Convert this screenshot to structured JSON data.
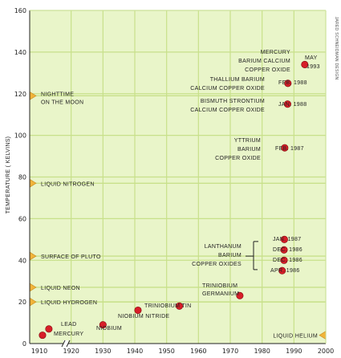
{
  "chart_data": {
    "type": "scatter",
    "title": "",
    "xlabel": "",
    "ylabel": "TEMPERATURE ( KELVINS)",
    "xlim": [
      1905,
      2000
    ],
    "ylim": [
      0,
      160
    ],
    "x_ticks": [
      "1910",
      "1920",
      "1930",
      "1940",
      "1950",
      "1960",
      "1970",
      "1980",
      "1990",
      "2000"
    ],
    "y_ticks": [
      "0",
      "20",
      "40",
      "60",
      "80",
      "100",
      "120",
      "140",
      "160"
    ],
    "grid": true,
    "axis_break": true,
    "credit": "JARED SCHNEIDMAN DESIGN",
    "colors": {
      "background": "#e9f5c9",
      "grid": "#c8e08a",
      "point": "#d81e28",
      "marker": "#f1b43a"
    },
    "reference_levels": [
      {
        "label": "NIGHTTIME ON THE MOON",
        "value": 119
      },
      {
        "label": "LIQUID NITROGEN",
        "value": 77
      },
      {
        "label": "SURFACE OF PLUTO",
        "value": 42
      },
      {
        "label": "LIQUID NEON",
        "value": 27
      },
      {
        "label": "LIQUID HYDROGEN",
        "value": 20
      },
      {
        "label": "LIQUID HELIUM",
        "value": 4
      }
    ],
    "points": [
      {
        "material": "MERCURY",
        "x": 1911,
        "y": 4
      },
      {
        "material": "LEAD",
        "x": 1913,
        "y": 7
      },
      {
        "material": "NIOBIUM",
        "x": 1930,
        "y": 9
      },
      {
        "material": "NIOBIUM NITRIDE",
        "x": 1941,
        "y": 16
      },
      {
        "material": "TRINIOBIUM TIN",
        "x": 1954,
        "y": 18
      },
      {
        "material": "TRINIOBIUM GERMANIUM",
        "x": 1973,
        "y": 23
      },
      {
        "material": "LANTHANUM BARIUM COPPER OXIDES",
        "x": 1986.3,
        "y": 35,
        "date": "APR. 1986"
      },
      {
        "material": "LANTHANUM BARIUM COPPER OXIDES",
        "x": 1986.9,
        "y": 40,
        "date": "DEC. 1986"
      },
      {
        "material": "LANTHANUM BARIUM COPPER OXIDES",
        "x": 1986.9,
        "y": 45,
        "date": "DEC. 1986"
      },
      {
        "material": "LANTHANUM BARIUM COPPER OXIDES",
        "x": 1987.0,
        "y": 50,
        "date": "JAN. 1987"
      },
      {
        "material": "YTTRIUM BARIUM COPPER OXIDE",
        "x": 1987.1,
        "y": 94,
        "date": "FEB. 1987"
      },
      {
        "material": "BISMUTH STRONTIUM CALCIUM COPPER OXIDE",
        "x": 1988.0,
        "y": 115,
        "date": "JAN. 1988"
      },
      {
        "material": "THALLIUM BARIUM CALCIUM COPPER OXIDE",
        "x": 1988.1,
        "y": 125,
        "date": "FEB. 1988"
      },
      {
        "material": "MERCURY BARIUM CALCIUM COPPER OXIDE",
        "x": 1993.4,
        "y": 134,
        "date": "MAY 1993"
      }
    ],
    "annotations": {
      "mercury": "MERCURY",
      "lead": "LEAD",
      "niobium": "NIOBIUM",
      "niobium_nitride": "NIOBIUM NITRIDE",
      "triniobium_tin": "TRINIOBIUM TIN",
      "triniobium_ge_1": "TRINIOBIUM",
      "triniobium_ge_2": "GERMANIUM",
      "lbco_1": "LANTHANUM",
      "lbco_2": "BARIUM",
      "lbco_3": "COPPER OXIDES",
      "lbco_d1": "JAN. 1987",
      "lbco_d2": "DEC. 1986",
      "lbco_d3": "DEC. 1986",
      "lbco_d4": "APR. 1986",
      "ybco_1": "YTTRIUM",
      "ybco_2": "BARIUM",
      "ybco_3": "COPPER OXIDE",
      "ybco_d": "FEB. 1987",
      "bscco_1": "BISMUTH STRONTIUM",
      "bscco_2": "CALCIUM COPPER OXIDE",
      "bscco_d": "JAN. 1988",
      "tbcco_1": "THALLIUM BARIUM",
      "tbcco_2": "CALCIUM COPPER OXIDE",
      "tbcco_d": "FEB. 1988",
      "hbcco_1": "MERCURY",
      "hbcco_2": "BARIUM CALCIUM",
      "hbcco_3": "COPPER OXIDE",
      "hbcco_d1": "MAY",
      "hbcco_d2": "1993"
    }
  }
}
